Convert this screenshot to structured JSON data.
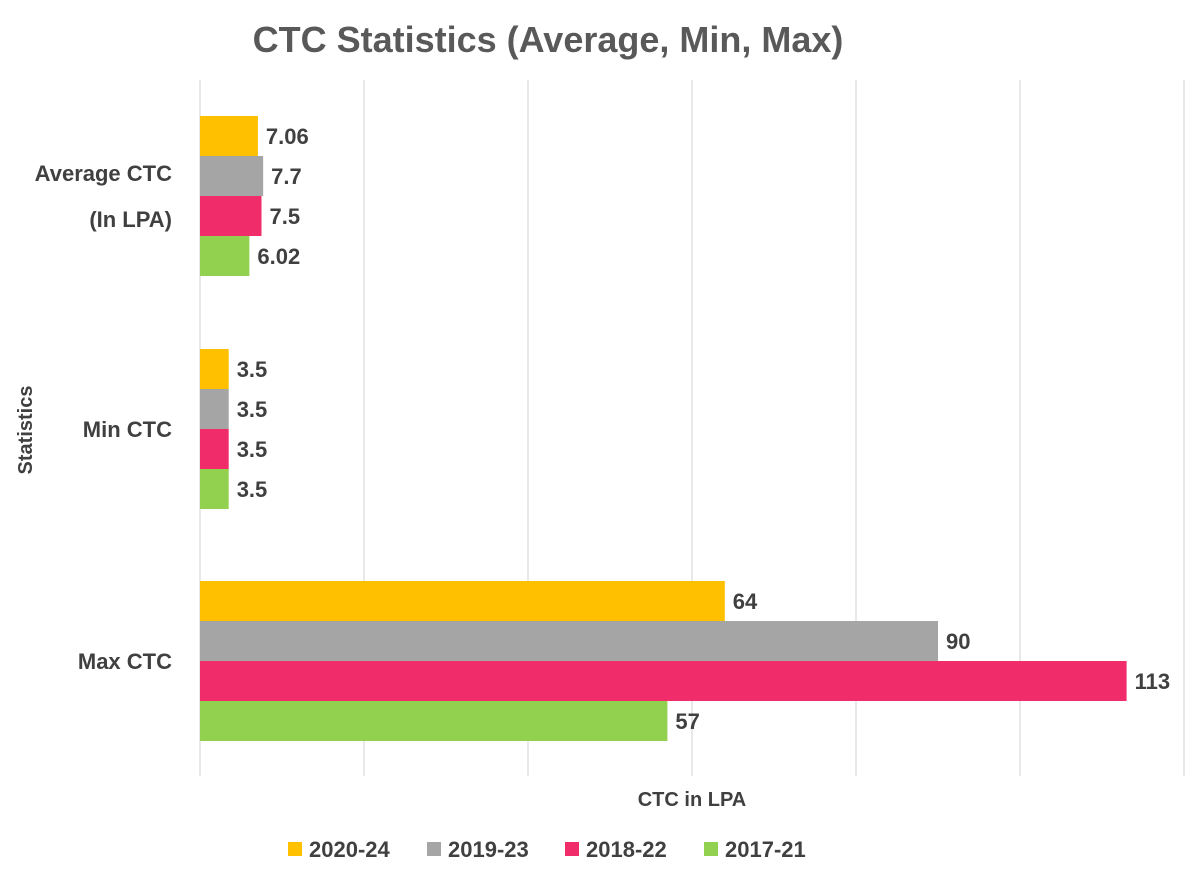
{
  "chart_data": {
    "type": "bar",
    "orientation": "horizontal",
    "title": "CTC Statistics (Average, Min, Max)",
    "xlabel": "CTC in LPA",
    "ylabel": "Statistics",
    "categories": [
      [
        "Average CTC",
        "(In LPA)"
      ],
      [
        "Min CTC"
      ],
      [
        "Max CTC"
      ]
    ],
    "series": [
      {
        "name": "2020-24",
        "color": "#FFC000",
        "values": [
          7.06,
          3.5,
          64
        ],
        "labels": [
          "7.06",
          "3.5",
          "64"
        ]
      },
      {
        "name": "2019-23",
        "color": "#A5A5A5",
        "values": [
          7.7,
          3.5,
          90
        ],
        "labels": [
          "7.7",
          "3.5",
          "90"
        ]
      },
      {
        "name": "2018-22",
        "color": "#F02C6A",
        "values": [
          7.5,
          3.5,
          113
        ],
        "labels": [
          "7.5",
          "3.5",
          "113"
        ]
      },
      {
        "name": "2017-21",
        "color": "#92D050",
        "values": [
          6.02,
          3.5,
          57
        ],
        "labels": [
          "6.02",
          "3.5",
          "57"
        ]
      }
    ],
    "xlim": [
      0,
      120
    ],
    "gridlines": [
      0,
      20,
      40,
      60,
      80,
      100,
      120
    ],
    "grid": true,
    "legend_position": "bottom",
    "data_labels": true
  }
}
